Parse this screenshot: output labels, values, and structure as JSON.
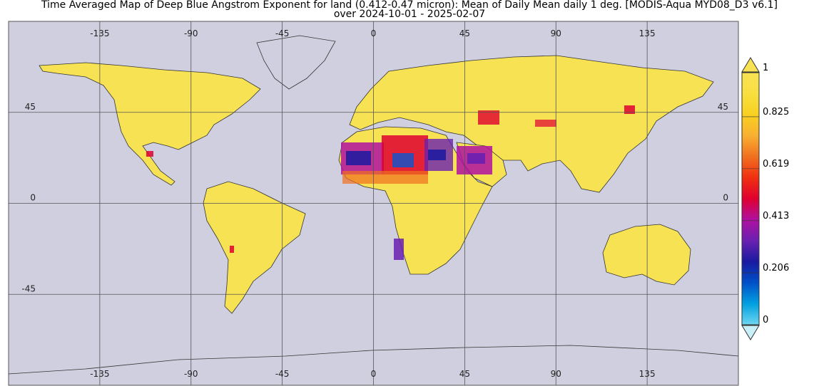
{
  "title": {
    "line1": "Time Averaged Map of Deep Blue Angstrom Exponent for land (0.412-0.47 micron): Mean of Daily Mean daily 1 deg. [MODIS-Aqua MYD08_D3 v6.1]",
    "line2": "over 2024-10-01 - 2025-02-07"
  },
  "map": {
    "lon_range": [
      -180,
      180
    ],
    "lat_range": [
      -90,
      90
    ],
    "ocean_color": "#cfcfdf",
    "land_color": "#f7e253",
    "grid_color": "#555555",
    "lon_ticks_top": [
      {
        "lon": -135,
        "label": "-135"
      },
      {
        "lon": -90,
        "label": "-90"
      },
      {
        "lon": -45,
        "label": "-45"
      },
      {
        "lon": 0,
        "label": "0"
      },
      {
        "lon": 45,
        "label": "45"
      },
      {
        "lon": 90,
        "label": "90"
      },
      {
        "lon": 135,
        "label": "135"
      }
    ],
    "lon_ticks_bottom": [
      {
        "lon": -135,
        "label": "-135"
      },
      {
        "lon": -90,
        "label": "-90"
      },
      {
        "lon": -45,
        "label": "-45"
      },
      {
        "lon": 0,
        "label": "0"
      },
      {
        "lon": 45,
        "label": "45"
      },
      {
        "lon": 90,
        "label": "90"
      },
      {
        "lon": 135,
        "label": "135"
      }
    ],
    "lat_ticks_left": [
      {
        "lat": 45,
        "label": "45"
      },
      {
        "lat": 0,
        "label": "0"
      },
      {
        "lat": -45,
        "label": "-45"
      }
    ],
    "lat_ticks_right": [
      {
        "lat": 45,
        "label": "45"
      },
      {
        "lat": 0,
        "label": "0"
      }
    ]
  },
  "colorbar": {
    "min": 0,
    "max": 1,
    "ticks": [
      {
        "value": 1,
        "label": "1"
      },
      {
        "value": 0.825,
        "label": "0.825"
      },
      {
        "value": 0.619,
        "label": "0.619"
      },
      {
        "value": 0.413,
        "label": "0.413"
      },
      {
        "value": 0.206,
        "label": "0.206"
      },
      {
        "value": 0,
        "label": "0"
      }
    ],
    "colors": [
      "#6fd6f0",
      "#00a0e0",
      "#0050c8",
      "#1a1aa0",
      "#6a20b0",
      "#b010a0",
      "#e00030",
      "#f03010",
      "#f07020",
      "#f8b030",
      "#f8d020",
      "#f8e040",
      "#f7e253"
    ],
    "over_color": "#f7e253",
    "under_color": "#c8f0f8"
  }
}
